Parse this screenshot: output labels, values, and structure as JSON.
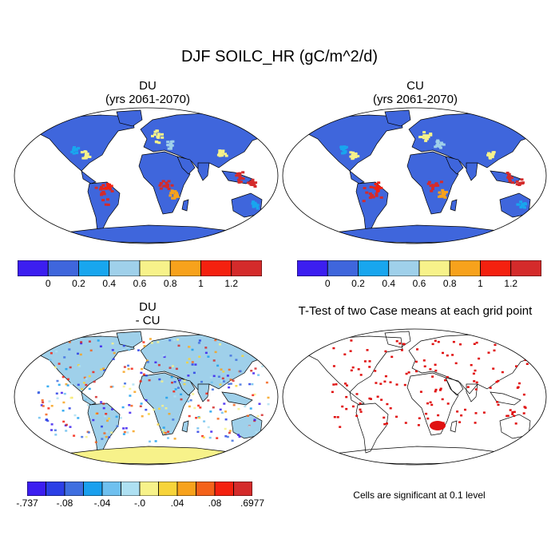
{
  "figure": {
    "title": "DJF SOILC_HR (gC/m^2/d)"
  },
  "panels": [
    {
      "id": "du",
      "title_line1": "DU",
      "title_line2": "(yrs 2061-2070)"
    },
    {
      "id": "cu",
      "title_line1": "CU",
      "title_line2": "(yrs 2061-2070)"
    },
    {
      "id": "diff",
      "title_line1": "DU",
      "title_line2": "- CU"
    },
    {
      "id": "ttest",
      "title_line1": "T-Test of two Case means at each grid point",
      "title_line2": ""
    }
  ],
  "colorbar_main": {
    "colors": [
      "#3c1ef0",
      "#3f66dc",
      "#18a6ee",
      "#9fd0ea",
      "#f7f28a",
      "#f7a21c",
      "#f4210f",
      "#d42b2b"
    ],
    "tick_labels": [
      "0",
      "0.2",
      "0.4",
      "0.6",
      "0.8",
      "1",
      "1.2"
    ]
  },
  "colorbar_diff": {
    "colors": [
      "#3c1ef0",
      "#2b3fe6",
      "#3f6fe0",
      "#1aa0ee",
      "#6fc0ef",
      "#aee0f2",
      "#f7f28a",
      "#f7d43a",
      "#f7a21c",
      "#f4621a",
      "#f4210f",
      "#d42b2b"
    ],
    "tick_labels": [
      "-.737",
      "-.08",
      "-.04",
      "-.0",
      ".04",
      ".08",
      ".6977"
    ]
  },
  "ttest_note": "Cells are significant at 0.1 level",
  "map_colors": {
    "du_base": "#3f66dc",
    "diff_base": "#9fd0ea",
    "diff_antarctica": "#f7f28a",
    "ttest_sig": "#e01010"
  }
}
